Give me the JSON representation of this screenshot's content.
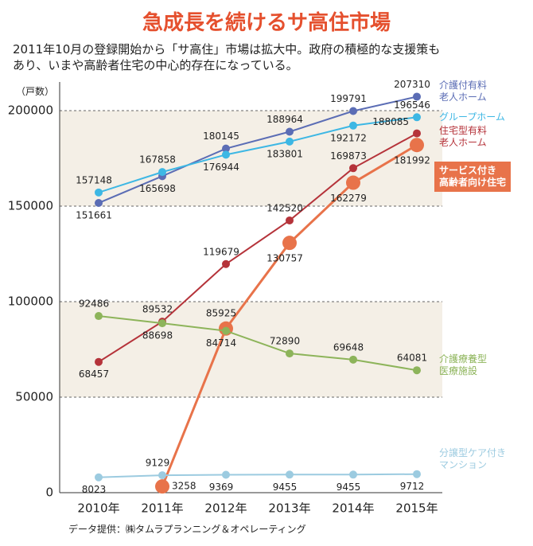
{
  "chart_data": {
    "type": "line",
    "title": "急成長を続けるサ高住市場",
    "subtitle": "2011年10月の登録開始から「サ高住」市場は拡大中。政府の積極的な支援策も\nあり、いまや高齢者住宅の中心的存在になっている。",
    "y_label": "（戸数）",
    "source": "データ提供：㈱タムラプランニング＆オペレーティング",
    "categories": [
      "2010年",
      "2011年",
      "2012年",
      "2013年",
      "2014年",
      "2015年"
    ],
    "ylim": [
      0,
      215000
    ],
    "yticks": [
      0,
      50000,
      100000,
      150000,
      200000
    ],
    "grid": true,
    "series": [
      {
        "name": "介護付有料\n老人ホーム",
        "color": "#5b6db5",
        "values": [
          151661,
          165698,
          180145,
          188964,
          199791,
          207310
        ]
      },
      {
        "name": "グループホーム",
        "color": "#3db7e4",
        "values": [
          157148,
          167858,
          176944,
          183801,
          192172,
          196546
        ]
      },
      {
        "name": "住宅型有料\n老人ホーム",
        "color": "#b5333a",
        "values": [
          68457,
          89532,
          119679,
          142520,
          169873,
          188085
        ]
      },
      {
        "name": "サービス付き\n高齢者向け住宅",
        "color": "#e8734a",
        "values": [
          null,
          3258,
          85925,
          130757,
          162279,
          181992
        ]
      },
      {
        "name": "介護療養型\n医療施設",
        "color": "#8db45a",
        "values": [
          92486,
          88698,
          84714,
          72890,
          69648,
          64081
        ]
      },
      {
        "name": "分譲型ケア付き\nマンション",
        "color": "#9ccbe0",
        "values": [
          8023,
          9129,
          9369,
          9455,
          9455,
          9712
        ]
      }
    ]
  }
}
